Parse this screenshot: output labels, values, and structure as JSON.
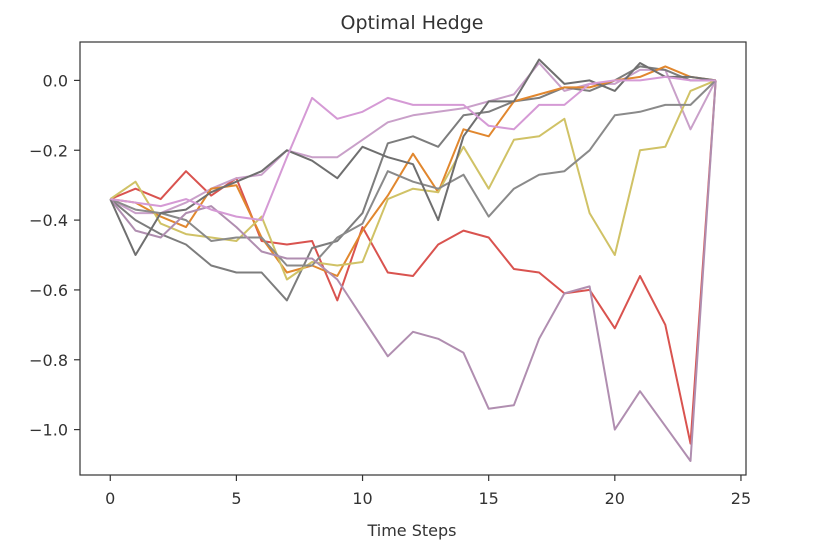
{
  "chart_data": {
    "type": "line",
    "title": "Optimal Hedge",
    "xlabel": "Time Steps",
    "ylabel": "",
    "xlim": [
      -1.2,
      25.2
    ],
    "ylim": [
      -1.13,
      0.11
    ],
    "xticks": [
      0,
      5,
      10,
      15,
      20,
      25
    ],
    "yticks": [
      0.0,
      -0.2,
      -0.4,
      -0.6,
      -0.8,
      -1.0
    ],
    "ytick_labels": [
      "0.0",
      "−0.2",
      "−0.4",
      "−0.6",
      "−0.8",
      "−1.0"
    ],
    "grid": false,
    "legend": "none",
    "x": [
      0,
      1,
      2,
      3,
      4,
      5,
      6,
      7,
      8,
      9,
      10,
      11,
      12,
      13,
      14,
      15,
      16,
      17,
      18,
      19,
      20,
      21,
      22,
      23,
      24
    ],
    "series": [
      {
        "color": "#d9534f",
        "values": [
          -0.34,
          -0.31,
          -0.34,
          -0.26,
          -0.33,
          -0.28,
          -0.46,
          -0.47,
          -0.46,
          -0.63,
          -0.42,
          -0.55,
          -0.56,
          -0.47,
          -0.43,
          -0.45,
          -0.54,
          -0.55,
          -0.61,
          -0.6,
          -0.71,
          -0.56,
          -0.7,
          -1.04,
          0.0
        ]
      },
      {
        "color": "#c9a0c9",
        "values": [
          -0.34,
          -0.38,
          -0.38,
          -0.35,
          -0.31,
          -0.28,
          -0.27,
          -0.2,
          -0.22,
          -0.22,
          -0.17,
          -0.12,
          -0.1,
          -0.09,
          -0.08,
          -0.06,
          -0.04,
          0.05,
          -0.03,
          -0.01,
          -0.01,
          0.03,
          0.03,
          -0.14,
          0.0
        ]
      },
      {
        "color": "#7d7d7d",
        "values": [
          -0.34,
          -0.4,
          -0.44,
          -0.47,
          -0.53,
          -0.55,
          -0.55,
          -0.63,
          -0.48,
          -0.46,
          -0.38,
          -0.18,
          -0.16,
          -0.19,
          -0.1,
          -0.09,
          -0.06,
          -0.05,
          -0.02,
          -0.03,
          0.0,
          0.04,
          0.03,
          0.0,
          0.0
        ]
      },
      {
        "color": "#e1872e",
        "values": [
          -0.34,
          -0.35,
          -0.39,
          -0.42,
          -0.31,
          -0.3,
          -0.45,
          -0.55,
          -0.53,
          -0.56,
          -0.43,
          -0.33,
          -0.21,
          -0.32,
          -0.14,
          -0.16,
          -0.06,
          -0.04,
          -0.02,
          -0.02,
          0.0,
          0.01,
          0.04,
          0.01,
          0.0
        ]
      },
      {
        "color": "#d0c266",
        "values": [
          -0.34,
          -0.29,
          -0.41,
          -0.44,
          -0.45,
          -0.46,
          -0.39,
          -0.57,
          -0.52,
          -0.53,
          -0.52,
          -0.34,
          -0.31,
          -0.32,
          -0.19,
          -0.31,
          -0.17,
          -0.16,
          -0.11,
          -0.38,
          -0.5,
          -0.2,
          -0.19,
          -0.03,
          0.0
        ]
      },
      {
        "color": "#8a8a8a",
        "values": [
          -0.34,
          -0.37,
          -0.38,
          -0.4,
          -0.46,
          -0.45,
          -0.45,
          -0.53,
          -0.53,
          -0.45,
          -0.41,
          -0.26,
          -0.29,
          -0.31,
          -0.27,
          -0.39,
          -0.31,
          -0.27,
          -0.26,
          -0.2,
          -0.1,
          -0.09,
          -0.07,
          -0.07,
          0.0
        ]
      },
      {
        "color": "#b08eb0",
        "values": [
          -0.34,
          -0.43,
          -0.45,
          -0.38,
          -0.36,
          -0.42,
          -0.49,
          -0.51,
          -0.51,
          -0.57,
          -0.68,
          -0.79,
          -0.72,
          -0.74,
          -0.78,
          -0.94,
          -0.93,
          -0.74,
          -0.61,
          -0.59,
          -1.0,
          -0.89,
          -0.99,
          -1.09,
          0.0
        ]
      },
      {
        "color": "#6f6f6f",
        "values": [
          -0.34,
          -0.5,
          -0.38,
          -0.37,
          -0.32,
          -0.29,
          -0.26,
          -0.2,
          -0.23,
          -0.28,
          -0.19,
          -0.22,
          -0.24,
          -0.4,
          -0.16,
          -0.06,
          -0.06,
          0.06,
          -0.01,
          0.0,
          -0.03,
          0.05,
          0.01,
          0.01,
          0.0
        ]
      },
      {
        "color": "#d59ad5",
        "values": [
          -0.34,
          -0.35,
          -0.36,
          -0.34,
          -0.37,
          -0.39,
          -0.4,
          -0.22,
          -0.05,
          -0.11,
          -0.09,
          -0.05,
          -0.07,
          -0.07,
          -0.07,
          -0.13,
          -0.14,
          -0.07,
          -0.07,
          -0.01,
          0.0,
          0.0,
          0.01,
          0.0,
          0.0
        ]
      }
    ]
  }
}
